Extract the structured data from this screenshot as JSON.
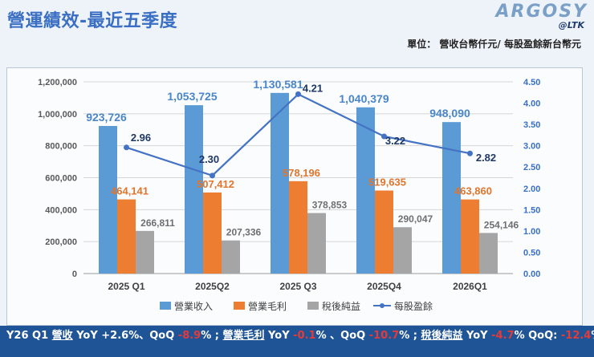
{
  "header": {
    "title": "營運績效-最近五季度",
    "logo_main": "ARGOSY",
    "logo_sub": "@LTK",
    "unit_note": "單位： 營收台幣仟元/ 每股盈餘新台幣元"
  },
  "colors": {
    "revenue": "#5b9bd5",
    "gross": "#ed7d31",
    "net": "#a5a5a5",
    "eps": "#4472c4",
    "bar_label_blue": "#4a86c8",
    "bar_label_orange": "#e0752d",
    "bar_label_gray": "#6f6f6f",
    "eps_label": "#1f3864"
  },
  "chart_data": {
    "type": "bar",
    "categories": [
      "2025 Q1",
      "2025Q2",
      "2025 Q3",
      "2025Q4",
      "2026Q1"
    ],
    "series": [
      {
        "name": "營業收入",
        "values": [
          923726,
          1053725,
          1130581,
          1040379,
          948090
        ],
        "labels": [
          "923,726",
          "1,053,725",
          "1,130,581",
          "1,040,379",
          "948,090"
        ]
      },
      {
        "name": "營業毛利",
        "values": [
          464141,
          507412,
          578196,
          519635,
          463860
        ],
        "labels": [
          "464,141",
          "507,412",
          "578,196",
          "519,635",
          "463,860"
        ]
      },
      {
        "name": "稅後純益",
        "values": [
          266811,
          207336,
          378853,
          290047,
          254146
        ],
        "labels": [
          "266,811",
          "207,336",
          "378,853",
          "290,047",
          "254,146"
        ]
      },
      {
        "name": "每股盈餘",
        "type": "line",
        "axis": "right",
        "values": [
          2.96,
          2.3,
          4.21,
          3.22,
          2.82
        ],
        "labels": [
          "2.96",
          "2.30",
          "4.21",
          "3.22",
          "2.82"
        ]
      }
    ],
    "ylim": [
      0,
      1200000
    ],
    "y2lim": [
      0,
      4.5
    ],
    "yticks": [
      "0",
      "200,000",
      "400,000",
      "600,000",
      "800,000",
      "1,000,000",
      "1,200,000"
    ],
    "y2ticks": [
      "0.00",
      "0.50",
      "1.00",
      "1.50",
      "2.00",
      "2.50",
      "3.00",
      "3.50",
      "4.00",
      "4.50"
    ],
    "legend_position": "bottom",
    "grid": true
  },
  "summary": {
    "p1": "Y26 Q1 ",
    "k1": "營收",
    "p2": " YoY +2.6%、QoQ ",
    "n1": "-8.9",
    "p3": "% ; ",
    "k2": "營業毛利",
    "p4": " YoY ",
    "n2": "-0.1",
    "p5": "% 、QoQ ",
    "n3": "-10.7",
    "p6": "% ; ",
    "k3": "稅後純益",
    "p7": " YoY ",
    "n4": "-4.7",
    "p8": "%  QoQ: ",
    "n5": "-12.4",
    "p9": "%"
  }
}
